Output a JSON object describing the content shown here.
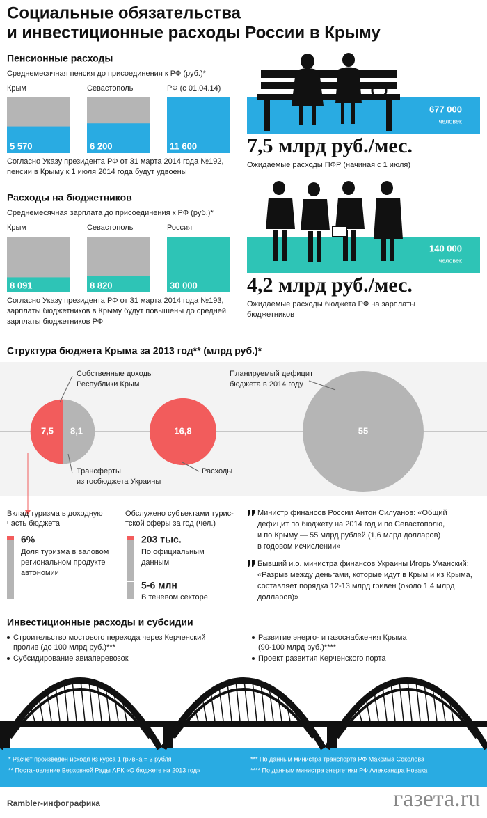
{
  "header": {
    "title": [
      "Социальные обязательства",
      "и инвестиционные расходы России в Крыму"
    ]
  },
  "pension": {
    "title": "Пенсионные расходы",
    "subtitle": "Среднемесячная пенсия до присоединения к РФ (руб.)*",
    "bars": [
      {
        "label": "Крым",
        "value": {
          "value": 5570,
          "label": "5 570"
        }
      },
      {
        "label": "Севастополь",
        "value": {
          "value": 6200,
          "label": "6 200"
        }
      },
      {
        "label": "РФ (с 01.04.14)",
        "value": {
          "value": 11600,
          "label": "11 600"
        }
      }
    ],
    "note": [
      "Согласно Указу президента РФ от 31 марта 2014 года №192,",
      "пенсии в Крыму к 1 июля 2014 года будут  удвоены"
    ],
    "count": "677 000",
    "count_unit": "человек",
    "amount": "7,5 млрд руб./мес.",
    "amount_note": [
      "Ожидаемые расходы ПФР (начиная с 1 июля)"
    ]
  },
  "salary": {
    "title": "Расходы на бюджетников",
    "subtitle": "Среднемесячная зарплата до присоединения к РФ (руб.)*",
    "bars": [
      {
        "label": "Крым",
        "value": {
          "value": 8091,
          "label": "8 091"
        }
      },
      {
        "label": "Севастополь",
        "value": {
          "value": 8820,
          "label": "8 820"
        }
      },
      {
        "label": "Россия",
        "value": {
          "value": 30000,
          "label": "30 000"
        }
      }
    ],
    "note": [
      "Согласно Указу президента РФ от 31 марта 2014 года №193,",
      "зарплаты бюджетников в Крыму будут повышены до средней",
      "зарплаты бюджетников РФ"
    ],
    "count": "140 000",
    "count_unit": "человек",
    "amount": "4,2 млрд руб./мес.",
    "amount_note": [
      "Ожидаемые расходы бюджета РФ на зарплаты",
      "бюджетников"
    ]
  },
  "budget": {
    "title": "Структура бюджета Крыма за 2013 год** (млрд руб.)*",
    "items": [
      {
        "value": 7.5,
        "label": "7,5"
      },
      {
        "value": 8.1,
        "label": "8,1"
      },
      {
        "value": 16.8,
        "label": "16,8"
      },
      {
        "value": 55,
        "label": "55"
      }
    ],
    "annotations": [
      [
        "Собственные доходы",
        "Республики Крым"
      ],
      [
        "Трансферты",
        "из госбюджета Украины"
      ],
      [
        "Расходы"
      ],
      [
        "Планируемый дефицит",
        "бюджета в 2014 году"
      ]
    ]
  },
  "tourism": {
    "title": [
      "Вклад туризма в доходную",
      "часть бюджета"
    ],
    "share": {
      "value": 6,
      "label": "6%"
    },
    "share_note": [
      "Доля туризма в валовом",
      "региональном продукте",
      "автономии"
    ]
  },
  "tourists": {
    "title": [
      "Обслужено субъектами турис-",
      "тской сферы за год (чел.)"
    ],
    "official": "203 тыс.",
    "official_note": [
      "По официальным",
      "данным"
    ],
    "shadow": "5-6 млн",
    "shadow_note": [
      "В теневом секторе"
    ]
  },
  "quotes": [
    [
      "Министр финансов России Антон Силуанов: «Общий",
      "дефицит по бюджету на 2014 год и по Севастополю,",
      "и по Крыму — 55 млрд рублей (1,6 млрд долларов)",
      "в годовом исчислении»"
    ],
    [
      "Бывший и.о. министра финансов Украины Игорь Уманский:",
      "«Разрыв между деньгами, которые идут в Крым и из Крыма,",
      "составляет порядка 12-13 млрд гривен (около 1,4 млрд",
      "долларов)»"
    ]
  ],
  "investment": {
    "title": "Инвестиционные расходы и субсидии",
    "left": [
      [
        "Строительство мостового перехода через Керченский",
        "пролив (до 100 млрд руб.)***"
      ],
      [
        "Субсидирование авиаперевозок"
      ]
    ],
    "right": [
      [
        "Развитие энерго- и газоснабжения Крыма",
        "(90-100 млрд руб.)****"
      ],
      [
        "Проект развития Керченского порта"
      ]
    ]
  },
  "footnotes": [
    "* Расчет произведен исходя из курса 1 гривна = 3 рубля",
    "** Постановление Верховной Рады АРК «О бюджете на 2013 год»",
    "*** По данным министра транспорта РФ Максима Соколова",
    "**** По данным министра энергетики РФ Александра Новака"
  ],
  "footer": {
    "credit": "Rambler-инфографика",
    "brand": "газета.ru"
  }
}
